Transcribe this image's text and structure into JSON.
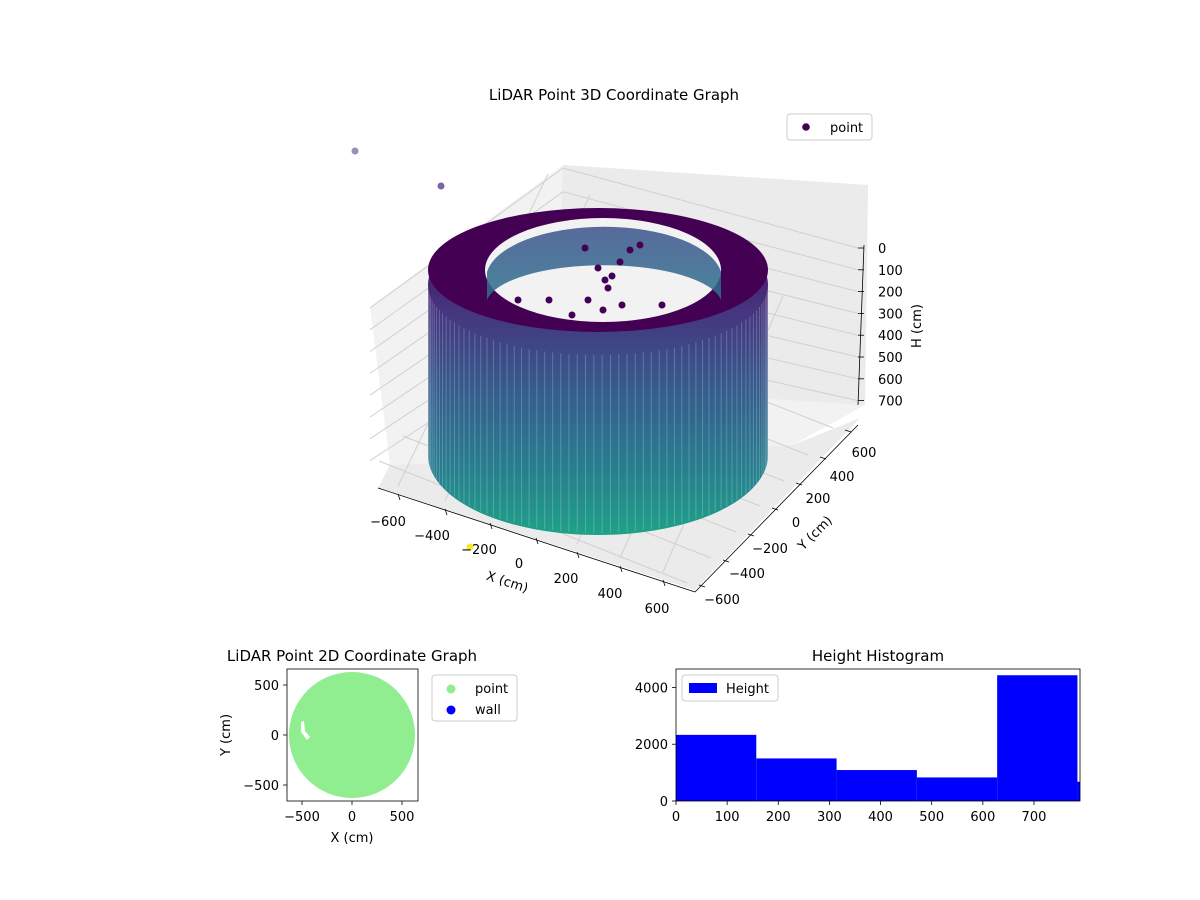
{
  "chart_data": [
    {
      "type": "scatter",
      "subtype": "scatter3d",
      "title": "LiDAR Point 3D Coordinate Graph",
      "xlabel": "X (cm)",
      "ylabel": "Y (cm)",
      "zlabel": "H (cm)",
      "xlim": [
        -700,
        700
      ],
      "ylim": [
        -700,
        700
      ],
      "zlim": [
        0,
        780
      ],
      "z_inverted": true,
      "xticks": [
        "−600",
        "−400",
        "−200",
        "0",
        "200",
        "400",
        "600"
      ],
      "yticks": [
        "−600",
        "−400",
        "−200",
        "0",
        "200",
        "400",
        "600"
      ],
      "zticks": [
        "0",
        "100",
        "200",
        "300",
        "400",
        "500",
        "600",
        "700"
      ],
      "grid": true,
      "colormap": [
        "#440154",
        "#3b528b",
        "#21918c",
        "#5ec962",
        "#fde725"
      ],
      "legend": {
        "placement": "upper-right",
        "entries": [
          {
            "label": "point",
            "color": "#440154"
          }
        ]
      },
      "series": [
        {
          "name": "point",
          "description_values": {
            "outer_radius": 620,
            "inner_radius": 480,
            "h_min": 0,
            "h_max": 780
          },
          "outliers": [
            {
              "x": -200,
              "y": -700,
              "h": 0
            },
            {
              "x": -780,
              "y": 520,
              "h": 0
            },
            {
              "x": -700,
              "y": 450,
              "h": 0
            }
          ]
        }
      ]
    },
    {
      "type": "scatter",
      "title": "LiDAR Point 2D Coordinate Graph",
      "xlabel": "X (cm)",
      "ylabel": "Y (cm)",
      "xlim": [
        -660,
        660
      ],
      "ylim": [
        -660,
        660
      ],
      "xticks": [
        "−500",
        "0",
        "500"
      ],
      "yticks": [
        "500",
        "0",
        "−500"
      ],
      "legend": {
        "placement": "outside-right",
        "entries": [
          {
            "label": "point",
            "color": "#90ee90"
          },
          {
            "label": "wall",
            "color": "#0000ff"
          }
        ]
      },
      "series": [
        {
          "name": "point",
          "shape": "disc",
          "center": [
            0,
            0
          ],
          "radius": 620
        },
        {
          "name": "wall",
          "values": []
        }
      ]
    },
    {
      "type": "bar",
      "subtype": "histogram",
      "title": "Height Histogram",
      "xlabel": "",
      "ylabel": "",
      "xlim": [
        0,
        790
      ],
      "ylim": [
        0,
        4650
      ],
      "xticks": [
        "0",
        "100",
        "200",
        "300",
        "400",
        "500",
        "600",
        "700"
      ],
      "yticks": [
        "0",
        "2000",
        "4000"
      ],
      "legend": {
        "placement": "upper-left",
        "entries": [
          {
            "label": "Height",
            "color": "#0000ff"
          }
        ]
      },
      "bins": [
        {
          "x0": 0,
          "x1": 157,
          "count": 2330
        },
        {
          "x0": 157,
          "x1": 314,
          "count": 1500
        },
        {
          "x0": 314,
          "x1": 471,
          "count": 1090
        },
        {
          "x0": 471,
          "x1": 628,
          "count": 830
        },
        {
          "x0": 628,
          "x1": 785,
          "count": 4430
        },
        {
          "x0": 785,
          "x1": 790,
          "count": 680
        }
      ]
    }
  ]
}
